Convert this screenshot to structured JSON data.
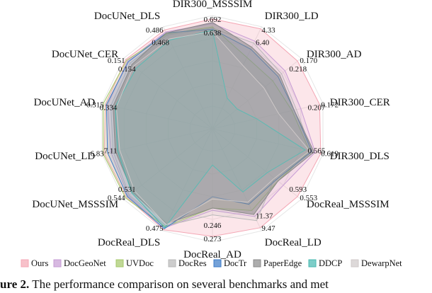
{
  "chart_data": {
    "type": "radar",
    "axes": [
      "DIR300_MSSSIM",
      "DIR300_LD",
      "DIR300_AD",
      "DIR300_CER",
      "DIR300_DLS",
      "DocReal_MSSSIM",
      "DocReal_LD",
      "DocReal_AD",
      "DocReal_DLS",
      "DocUNet_MSSSIM",
      "DocUNet_LD",
      "DocUNet_AD",
      "DocUNet_CER",
      "DocUNet_DLS"
    ],
    "axis_value_labels": [
      [
        "0.692",
        "0.638"
      ],
      [
        "4.33",
        "6.40"
      ],
      [
        "0.170",
        "0.218"
      ],
      [
        "0.172",
        "0.207"
      ],
      [
        "0.619",
        "0.565"
      ],
      [
        "0.553",
        "0.593"
      ],
      [
        "9.47",
        "11.37"
      ],
      [
        "0.273",
        "0.246"
      ],
      [
        "0.475"
      ],
      [
        "0.544",
        "0.531"
      ],
      [
        "6.83",
        "7.11"
      ],
      [
        "0.315",
        "0.334"
      ],
      [
        "0.151",
        "0.154"
      ],
      [
        "0.486",
        "0.468"
      ]
    ],
    "grid_levels": 5,
    "series": [
      {
        "name": "Ours",
        "color": "#f4a6b4",
        "values": [
          0.97,
          0.98,
          0.96,
          0.97,
          0.98,
          0.96,
          0.97,
          0.95,
          0.99,
          0.97,
          0.98,
          0.97,
          0.98,
          0.97
        ]
      },
      {
        "name": "DocGeoNet",
        "color": "#c69bd4",
        "values": [
          0.93,
          0.86,
          0.82,
          0.8,
          0.93,
          0.8,
          0.86,
          0.72,
          0.97,
          0.95,
          0.92,
          0.95,
          0.96,
          0.95
        ]
      },
      {
        "name": "UVDoc",
        "color": "#a5c86a",
        "values": [
          0.9,
          0.7,
          0.68,
          0.72,
          0.88,
          0.74,
          0.8,
          0.7,
          0.96,
          0.98,
          0.99,
          0.99,
          0.97,
          0.93
        ]
      },
      {
        "name": "DocRes",
        "color": "#b8b8b8",
        "values": [
          0.89,
          0.84,
          0.78,
          0.76,
          0.9,
          0.7,
          0.9,
          0.76,
          0.95,
          0.94,
          0.9,
          0.92,
          0.93,
          0.92
        ]
      },
      {
        "name": "DocTr",
        "color": "#3b7bc8",
        "values": [
          0.88,
          0.78,
          0.74,
          0.74,
          0.9,
          0.72,
          0.74,
          0.6,
          0.98,
          0.96,
          0.95,
          0.96,
          0.95,
          0.94
        ]
      },
      {
        "name": "PaperEdge",
        "color": "#8a8a8a",
        "values": [
          0.94,
          0.8,
          0.76,
          0.74,
          0.92,
          0.74,
          0.84,
          0.7,
          0.93,
          0.9,
          0.88,
          0.9,
          0.91,
          0.94
        ]
      },
      {
        "name": "DDCP",
        "color": "#46b8b0",
        "values": [
          0.87,
          0.3,
          0.28,
          0.4,
          0.84,
          0.62,
          0.62,
          0.32,
          0.97,
          0.91,
          0.86,
          0.88,
          0.86,
          0.87
        ]
      },
      {
        "name": "DewarpNet",
        "color": "#cfc9c9",
        "values": [
          0.86,
          0.62,
          0.58,
          0.6,
          0.88,
          0.7,
          0.72,
          0.62,
          0.94,
          0.88,
          0.84,
          0.87,
          0.89,
          0.88
        ]
      }
    ]
  },
  "caption": {
    "prefix": "ure 2.",
    "text": "     The performance comparison on several benchmarks and met"
  }
}
